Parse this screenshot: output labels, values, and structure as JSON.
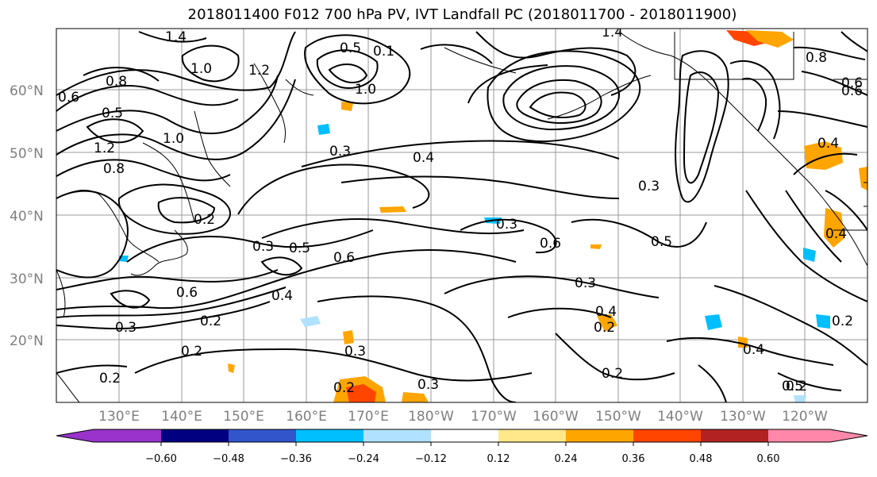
{
  "title": "2018011400 F012 700 hPa PV, IVT Landfall PC (2018011700 - 2018011900)",
  "map": {
    "lat_labels": [
      "60°N",
      "50°N",
      "40°N",
      "30°N",
      "20°N"
    ],
    "lon_labels": [
      "130°E",
      "140°E",
      "150°E",
      "160°E",
      "170°E",
      "180°W",
      "170°W",
      "160°W",
      "150°W",
      "140°W",
      "130°W",
      "120°W"
    ],
    "contour_labels": [
      "1.4",
      "1.2",
      "0.8",
      "0.6",
      "0.5",
      "1.0",
      "1.2",
      "0.5",
      "0.1",
      "1.0",
      "0.8",
      "1.0",
      "1.4",
      "0.4",
      "0.8",
      "0.3",
      "0.4",
      "0.6",
      "0.2",
      "0.3",
      "0.5",
      "0.6",
      "0.3",
      "0.6",
      "0.2",
      "0.4",
      "0.3",
      "0.2",
      "0.2",
      "0.2",
      "0.3",
      "0.3",
      "0.6",
      "0.5",
      "0.3",
      "0.4",
      "0.2",
      "0.3",
      "0.4",
      "0.2",
      "0.5",
      "0.4",
      "0.2",
      "0.2",
      "0.6"
    ]
  },
  "colorbar": {
    "ticks": [
      "−0.60",
      "−0.48",
      "−0.36",
      "−0.24",
      "−0.12",
      "0.12",
      "0.24",
      "0.36",
      "0.48",
      "0.60"
    ],
    "colors": [
      "#9933cc",
      "#000080",
      "#3355cc",
      "#00bfff",
      "#b0e2ff",
      "#ffffff",
      "#ffe88a",
      "#ffa500",
      "#ff4500",
      "#b22222",
      "#ff88aa"
    ]
  }
}
